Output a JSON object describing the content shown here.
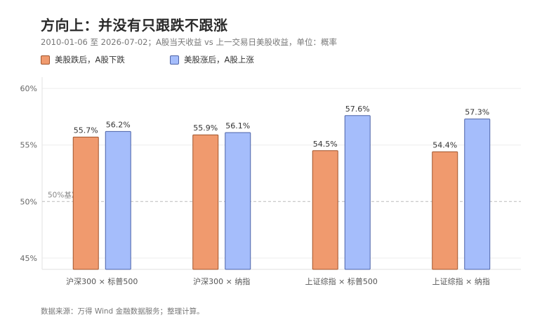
{
  "title": "方向上：并没有只跟跌不跟涨",
  "subtitle": "2010-01-06 至 2026-07-02；A股当天收益 vs 上一交易日美股收益，单位：概率",
  "source": "数据来源：万得 Wind 金融数据服务；整理计算。",
  "colors": {
    "down": "#f09a6e",
    "down_stroke": "#a0542c",
    "up": "#a5bdfb",
    "up_stroke": "#4d63a8",
    "grid": "#eeeeee",
    "axis_text": "#666666",
    "baseline": "#bbbbbb"
  },
  "chart_data": {
    "type": "bar",
    "categories": [
      "沪深300 × 标普500",
      "沪深300 × 纳指",
      "上证综指 × 标普500",
      "上证综指 × 纳指"
    ],
    "series": [
      {
        "name": "美股跌后，A股下跌",
        "values": [
          55.7,
          55.9,
          54.5,
          54.4
        ],
        "labels": [
          "55.7%",
          "55.9%",
          "54.5%",
          "54.4%"
        ]
      },
      {
        "name": "美股涨后，A股上涨",
        "values": [
          56.2,
          56.1,
          57.6,
          57.3
        ],
        "labels": [
          "56.2%",
          "56.1%",
          "57.6%",
          "57.3%"
        ]
      }
    ],
    "ylim": [
      44,
      61
    ],
    "yticks": [
      45,
      50,
      55,
      60
    ],
    "ytick_labels": [
      "45%",
      "50%",
      "55%",
      "60%"
    ],
    "reference_line": {
      "value": 50,
      "label": "50%基准"
    },
    "grid": true,
    "legend": "top-left"
  }
}
